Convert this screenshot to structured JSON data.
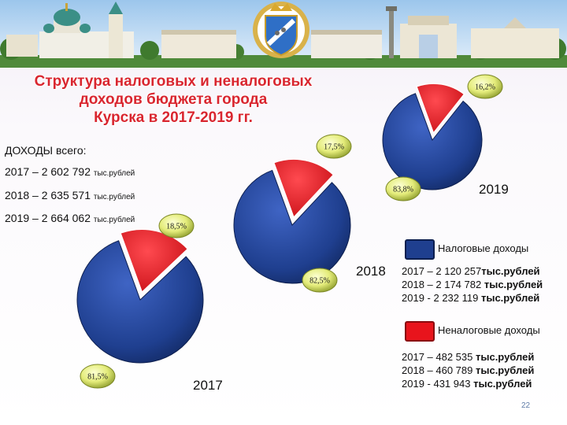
{
  "title_lines": [
    "Структура налоговых и неналоговых",
    "доходов бюджета города",
    "Курска в 2017-2019 гг."
  ],
  "totals": {
    "heading_prefix": "ДОХОДЫ",
    "heading_suffix": "всего:",
    "rows": [
      {
        "main": "2017 – 2 602 792",
        "unit": "тыс.рублей"
      },
      {
        "main": "2018 – 2 635 571",
        "unit": "тыс.рублей"
      },
      {
        "main": "2019 – 2 664 062",
        "unit": "тыс.рублей"
      }
    ]
  },
  "legend": {
    "tax": {
      "label": "Налоговые доходы",
      "color": "#1f3f8f",
      "rows": [
        {
          "year": "2017 – 2 120  257",
          "unit": "тыс.рублей"
        },
        {
          "year": "2018 – 2 174 782",
          "unit": "тыс.рублей"
        },
        {
          "year": "2019  - 2 232 119",
          "unit": "тыс.рублей"
        }
      ]
    },
    "nontax": {
      "label": "Неналоговые доходы",
      "color": "#e8141c",
      "rows": [
        {
          "year": "2017 – 482 535",
          "unit": "тыс.рублей"
        },
        {
          "year": "2018 – 460 789",
          "unit": "тыс.рублей"
        },
        {
          "year": "2019  - 431 943",
          "unit": "тыс.рублей"
        }
      ]
    }
  },
  "chart_data": [
    {
      "type": "pie",
      "title": "2017",
      "series": [
        {
          "name": "Налоговые доходы",
          "value": 81.5,
          "label": "81,5%",
          "color": "#1f3f8f"
        },
        {
          "name": "Неналоговые доходы",
          "value": 18.5,
          "label": "18,5%",
          "color": "#e8141c"
        }
      ]
    },
    {
      "type": "pie",
      "title": "2018",
      "series": [
        {
          "name": "Налоговые доходы",
          "value": 82.5,
          "label": "82,5%",
          "color": "#1f3f8f"
        },
        {
          "name": "Неналоговые доходы",
          "value": 17.5,
          "label": "17,5%",
          "color": "#e8141c"
        }
      ]
    },
    {
      "type": "pie",
      "title": "2019",
      "series": [
        {
          "name": "Налоговые доходы",
          "value": 83.8,
          "label": "83,8%",
          "color": "#1f3f8f"
        },
        {
          "name": "Неналоговые доходы",
          "value": 16.2,
          "label": "16,2%",
          "color": "#e8141c"
        }
      ]
    }
  ],
  "page_number": "22"
}
